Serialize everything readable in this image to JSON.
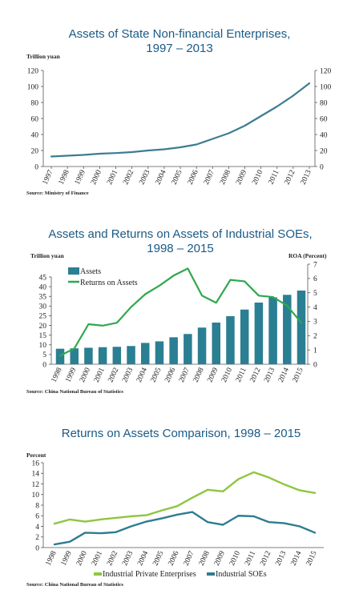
{
  "chart_data": [
    {
      "type": "line",
      "title": [
        "Assets of State Non-financial Enterprises,",
        "1997 – 2013"
      ],
      "y_unit": "Trillion yuan",
      "source": "Source: Ministry of Finance",
      "x": [
        "1997",
        "1998",
        "1999",
        "2000",
        "2001",
        "2002",
        "2003",
        "2004",
        "2005",
        "2006",
        "2007",
        "2008",
        "2009",
        "2010",
        "2011",
        "2012",
        "2013"
      ],
      "series": [
        {
          "values": [
            12.5,
            13.5,
            14.5,
            16.0,
            16.8,
            18.0,
            20.0,
            21.5,
            24.0,
            27.5,
            34.5,
            41.5,
            51.0,
            63.0,
            75.0,
            88.5,
            104.0
          ]
        }
      ],
      "ylim": [
        0,
        120
      ],
      "yticks": [
        0,
        20,
        40,
        60,
        80,
        100,
        120
      ],
      "dual_y_axis": true,
      "colors": {
        "line": "#3c7d91"
      }
    },
    {
      "type": "bar+line",
      "title": [
        "Assets and Returns on Assets of Industrial SOEs,",
        "1998 – 2015"
      ],
      "y_unit": "Trillion yuan",
      "y2_unit": "ROA (Percent)",
      "source": "Source: China National Bureau of Statistics",
      "categories": [
        "1998",
        "1999",
        "2000",
        "2001",
        "2002",
        "2003",
        "2004",
        "2005",
        "2006",
        "2007",
        "2008",
        "2009",
        "2010",
        "2011",
        "2012",
        "2013",
        "2014",
        "2015"
      ],
      "series": [
        {
          "name": "Assets",
          "axis": "left",
          "values": [
            8.0,
            8.2,
            8.5,
            8.8,
            9.0,
            9.4,
            11.0,
            11.8,
            13.9,
            15.6,
            18.9,
            21.5,
            24.8,
            28.2,
            31.8,
            34.5,
            35.8,
            38.0
          ]
        },
        {
          "name": "Returns on Assets",
          "axis": "right",
          "values": [
            0.6,
            1.1,
            2.8,
            2.7,
            2.9,
            4.0,
            4.9,
            5.5,
            6.2,
            6.7,
            4.8,
            4.3,
            5.9,
            5.8,
            4.8,
            4.7,
            4.1,
            2.9
          ]
        }
      ],
      "ylim": [
        0,
        45
      ],
      "yticks": [
        0,
        5,
        10,
        15,
        20,
        25,
        30,
        35,
        40,
        45
      ],
      "y2lim": [
        0,
        7
      ],
      "y2ticks": [
        0,
        1,
        2,
        3,
        4,
        5,
        6,
        7
      ],
      "legend": "top-left",
      "colors": {
        "bars": "#2a7f92",
        "line": "#2fa84f"
      }
    },
    {
      "type": "line",
      "title": [
        "Returns on Assets Comparison, 1998 – 2015"
      ],
      "y_unit": "Percent",
      "source": "Source: China National Bureau of Statistics",
      "x": [
        "1998",
        "1999",
        "2000",
        "2001",
        "2002",
        "2003",
        "2004",
        "2005",
        "2006",
        "2007",
        "2008",
        "2009",
        "2010",
        "2011",
        "2012",
        "2013",
        "2014",
        "2015"
      ],
      "series": [
        {
          "name": "Industrial Private Enterprises",
          "values": [
            4.5,
            5.3,
            4.9,
            5.3,
            5.6,
            5.9,
            6.1,
            7.0,
            7.8,
            9.4,
            10.9,
            10.6,
            12.9,
            14.2,
            13.2,
            11.9,
            10.8,
            10.3
          ]
        },
        {
          "name": "Industrial SOEs",
          "values": [
            0.6,
            1.1,
            2.8,
            2.7,
            2.9,
            4.0,
            4.9,
            5.5,
            6.2,
            6.7,
            4.8,
            4.3,
            6.0,
            5.9,
            4.8,
            4.6,
            4.0,
            2.8
          ]
        }
      ],
      "ylim": [
        0,
        16
      ],
      "yticks": [
        0,
        2,
        4,
        6,
        8,
        10,
        12,
        14,
        16
      ],
      "legend": "bottom",
      "colors": {
        "Industrial Private Enterprises": "#8ec63f",
        "Industrial SOEs": "#2f7c90"
      }
    }
  ]
}
